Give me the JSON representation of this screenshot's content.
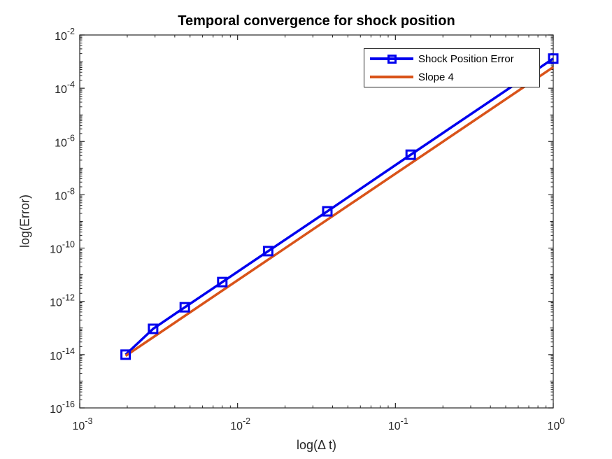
{
  "chart_data": {
    "type": "line",
    "title": "Temporal convergence for shock position",
    "xlabel": "log(Δ t)",
    "ylabel": "log(Error)",
    "x_scale": "log",
    "y_scale": "log",
    "xlim": [
      0.001,
      1
    ],
    "ylim": [
      1e-16,
      0.01
    ],
    "x_tick_exponents": [
      -3,
      -2,
      -1,
      0
    ],
    "y_tick_exponents": [
      -2,
      -4,
      -6,
      -8,
      -10,
      -12,
      -14,
      -16
    ],
    "grid": false,
    "legend_position": "northeast",
    "axis_color": "#262626",
    "background": "#ffffff",
    "series": [
      {
        "name": "Shock Position Error",
        "color": "#0000EE",
        "line_width": 3.5,
        "marker": "square",
        "x": [
          0.001953125,
          0.0029154519,
          0.0046296296,
          0.008,
          0.015625,
          0.037037037,
          0.125,
          1
        ],
        "y": [
          1e-14,
          9.3e-14,
          6e-13,
          5.3e-12,
          7.7e-11,
          2.4e-09,
          3.2e-07,
          0.0013
        ]
      },
      {
        "name": "Slope 4",
        "color": "#D95319",
        "line_width": 3.5,
        "marker": "none",
        "x": [
          0.001953125,
          1
        ],
        "y": [
          9e-15,
          0.00062
        ]
      }
    ]
  },
  "legend": {
    "items": [
      {
        "label": "Shock Position Error"
      },
      {
        "label": "Slope 4"
      }
    ]
  }
}
